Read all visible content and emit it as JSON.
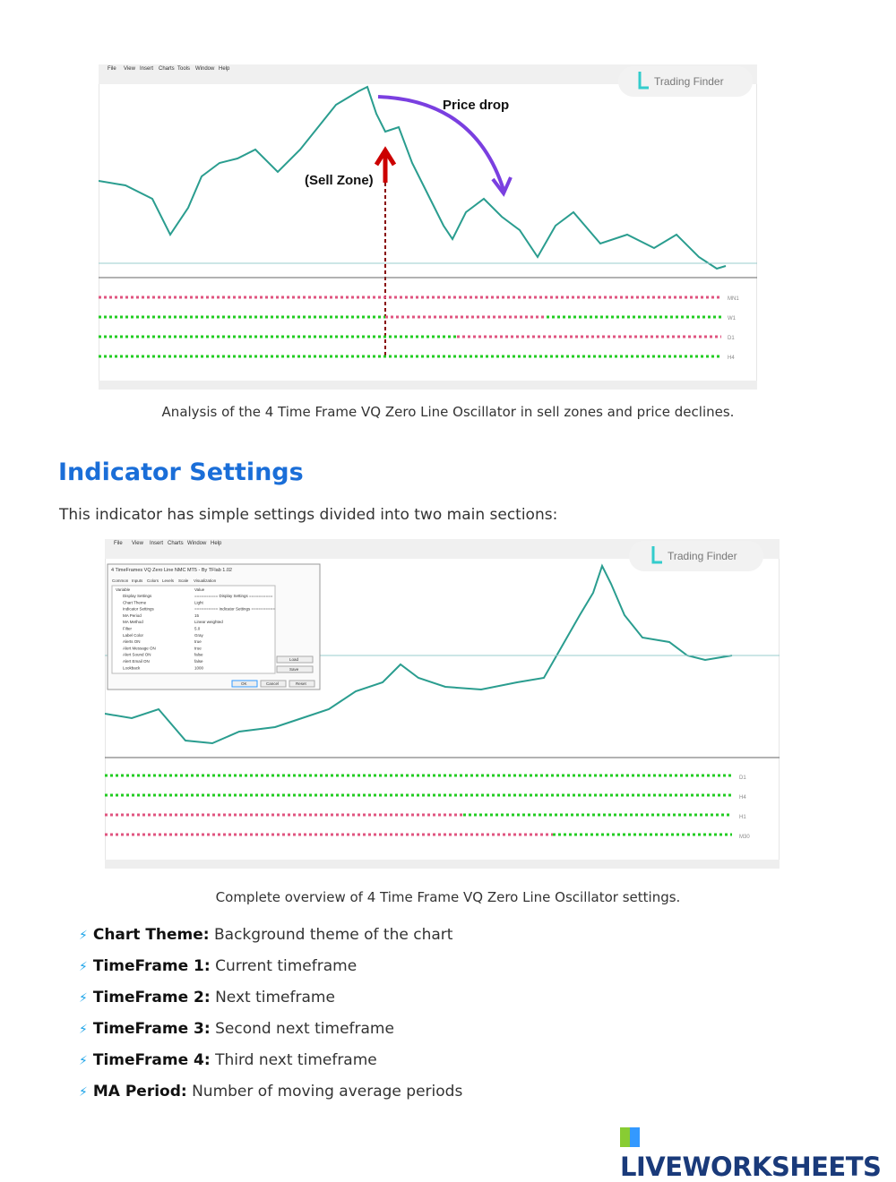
{
  "figures": [
    {
      "menu": [
        "File",
        "View",
        "Insert",
        "Charts",
        "Tools",
        "Window",
        "Help"
      ],
      "watermark": "Trading Finder",
      "annotations": [
        "Price drop",
        "(Sell Zone)"
      ],
      "oscillator_labels": [
        "MN1",
        "W1",
        "D1",
        "H4"
      ],
      "caption": "Analysis of the 4 Time Frame VQ Zero Line Oscillator in sell zones and price declines."
    },
    {
      "menu": [
        "File",
        "View",
        "Insert",
        "Charts",
        "Window",
        "Help"
      ],
      "watermark": "Trading Finder",
      "dialog": {
        "title": "4 TimeFrames VQ Zero Line NMC MT5 - By TFlab 1.02",
        "tabs": [
          "Common",
          "Inputs",
          "Colors",
          "Levels",
          "Scale",
          "Visualization"
        ],
        "columns": [
          "Variable",
          "Value"
        ],
        "rows": [
          [
            "Display Settings",
            "========== Display Settings =========="
          ],
          [
            "Chart Theme",
            "Light"
          ],
          [
            "Indicator Settings",
            "========== Indicator Settings =========="
          ],
          [
            "MA Period",
            "15"
          ],
          [
            "MA Method",
            "Linear weighted"
          ],
          [
            "Filter",
            "5.0"
          ],
          [
            "Label Color",
            "Gray"
          ],
          [
            "Alerts ON",
            "true"
          ],
          [
            "Alert Message ON",
            "true"
          ],
          [
            "Alert Sound ON",
            "false"
          ],
          [
            "Alert Email ON",
            "false"
          ],
          [
            "Lookback",
            "1000"
          ]
        ],
        "buttons": [
          "Load",
          "Save",
          "OK",
          "Cancel",
          "Reset"
        ]
      },
      "oscillator_labels": [
        "D1",
        "H4",
        "H1",
        "M30"
      ],
      "caption": "Complete overview of 4 Time Frame VQ Zero Line Oscillator settings."
    }
  ],
  "heading": "Indicator Settings",
  "intro": "This indicator has simple settings divided into two main sections:",
  "bullets": [
    {
      "term": "Chart Theme:",
      "text": "Background theme of the chart"
    },
    {
      "term": "TimeFrame 1:",
      "text": "Current timeframe"
    },
    {
      "term": "TimeFrame 2:",
      "text": "Next timeframe"
    },
    {
      "term": "TimeFrame 3:",
      "text": "Second next timeframe"
    },
    {
      "term": "TimeFrame 4:",
      "text": "Third next timeframe"
    },
    {
      "term": "MA Period:",
      "text": "Number of moving average periods"
    }
  ],
  "logo": "LIVEWORKSHEETS"
}
